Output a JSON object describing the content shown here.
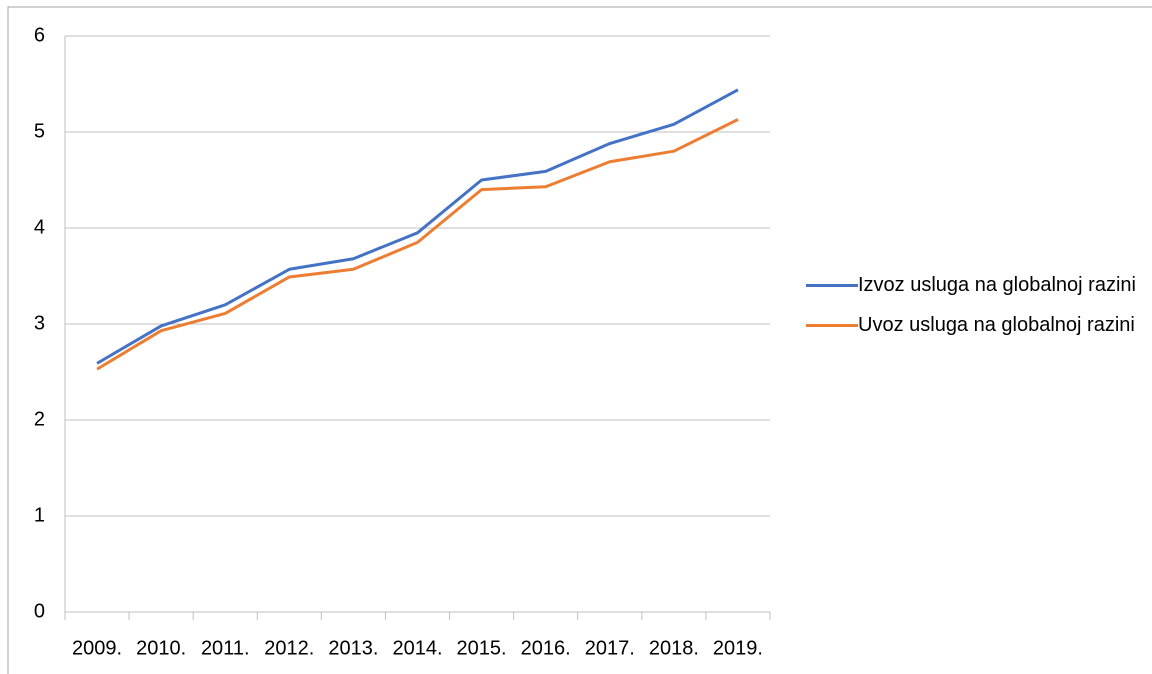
{
  "chart_data": {
    "type": "line",
    "categories": [
      "2009.",
      "2010.",
      "2011.",
      "2012.",
      "2013.",
      "2014.",
      "2015.",
      "2016.",
      "2017.",
      "2018.",
      "2019."
    ],
    "series": [
      {
        "name": "Izvoz usluga na globalnoj razini",
        "color": "#4472c4",
        "values": [
          2.59,
          2.98,
          3.2,
          3.57,
          3.68,
          3.95,
          4.5,
          4.59,
          4.88,
          5.08,
          5.44
        ]
      },
      {
        "name": "Uvoz usluga na globalnoj razini",
        "color": "#ed7d31",
        "values": [
          2.53,
          2.93,
          3.11,
          3.49,
          3.57,
          3.85,
          4.4,
          4.43,
          4.69,
          4.8,
          5.13
        ]
      }
    ],
    "ylim": [
      0,
      6
    ],
    "yticks": [
      0,
      1,
      2,
      3,
      4,
      5,
      6
    ],
    "grid": true,
    "legend": "right"
  }
}
